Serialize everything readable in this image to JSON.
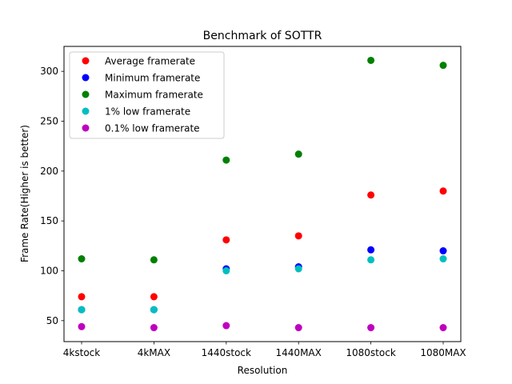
{
  "chart_data": {
    "type": "scatter",
    "title": "Benchmark of SOTTR",
    "xlabel": "Resolution",
    "ylabel": "Frame Rate(Higher is better)",
    "categories": [
      "4kstock",
      "4kMAX",
      "1440stock",
      "1440MAX",
      "1080stock",
      "1080MAX"
    ],
    "ylim": [
      29,
      325
    ],
    "yticks": [
      50,
      100,
      150,
      200,
      250,
      300
    ],
    "grid": false,
    "legend_position": "upper-left",
    "series": [
      {
        "name": "Average framerate",
        "color": "#ff0000",
        "values": [
          74,
          74,
          131,
          135,
          176,
          180
        ]
      },
      {
        "name": "Minimum framerate",
        "color": "#0000ff",
        "values": [
          61,
          61,
          102,
          104,
          121,
          120
        ]
      },
      {
        "name": "Maximum framerate",
        "color": "#008000",
        "values": [
          112,
          111,
          211,
          217,
          311,
          306
        ]
      },
      {
        "name": "1% low framerate",
        "color": "#00bfbf",
        "values": [
          61,
          61,
          100,
          102,
          111,
          112
        ]
      },
      {
        "name": "0.1% low framerate",
        "color": "#bf00bf",
        "values": [
          44,
          43,
          45,
          43,
          43,
          43
        ]
      }
    ]
  }
}
